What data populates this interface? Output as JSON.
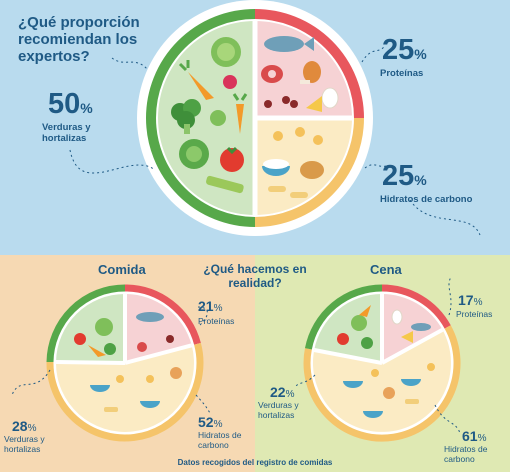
{
  "top": {
    "question": "¿Qué proporción recomiendan los expertos?",
    "vegetables": {
      "value": "50",
      "unit": "%",
      "label": "Verduras y hortalizas"
    },
    "proteins": {
      "value": "25",
      "unit": "%",
      "label": "Proteínas"
    },
    "carbs": {
      "value": "25",
      "unit": "%",
      "label": "Hidratos de carbono"
    }
  },
  "middle_question": "¿Qué hacemos en realidad?",
  "lunch": {
    "title": "Comida",
    "proteins": {
      "value": "21",
      "unit": "%",
      "label": "Proteínas"
    },
    "vegetables": {
      "value": "28",
      "unit": "%",
      "label": "Verduras y hortalizas"
    },
    "carbs": {
      "value": "52",
      "unit": "%",
      "label": "Hidratos de carbono"
    }
  },
  "dinner": {
    "title": "Cena",
    "proteins": {
      "value": "17",
      "unit": "%",
      "label": "Proteínas"
    },
    "vegetables": {
      "value": "22",
      "unit": "%",
      "label": "Verduras y hortalizas"
    },
    "carbs": {
      "value": "61",
      "unit": "%",
      "label": "Hidratos de carbono"
    }
  },
  "footer": "Datos recogidos del registro de comidas",
  "colors": {
    "veg_ring": "#57a84a",
    "protein_ring": "#e8575d",
    "carb_ring": "#f5c46a",
    "veg_fill": "#cfe6c2",
    "protein_fill": "#f6d2d4",
    "carb_fill": "#fbebc4",
    "text": "#1f5a85"
  }
}
